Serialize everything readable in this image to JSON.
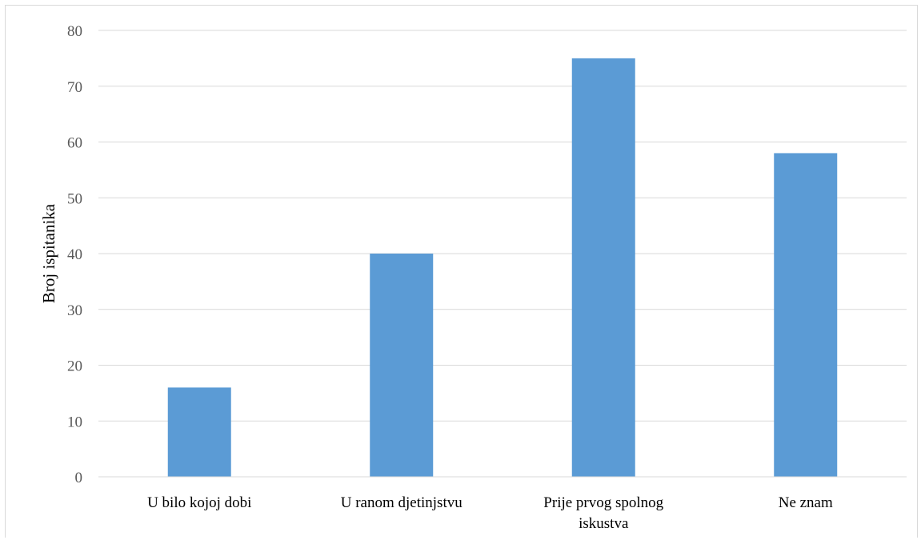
{
  "chart_data": {
    "type": "bar",
    "categories": [
      [
        "U bilo kojoj dobi"
      ],
      [
        "U ranom djetinjstvu"
      ],
      [
        "Prije prvog spolnog",
        "iskustva"
      ],
      [
        "Ne znam"
      ]
    ],
    "values": [
      16,
      40,
      75,
      58
    ],
    "ylabel": "Broj ispitanika",
    "ylim": [
      0,
      80
    ],
    "yticks": [
      0,
      10,
      20,
      30,
      40,
      50,
      60,
      70,
      80
    ],
    "grid": true,
    "bar_color": "#5b9bd5",
    "grid_color": "#d9d9d9"
  }
}
